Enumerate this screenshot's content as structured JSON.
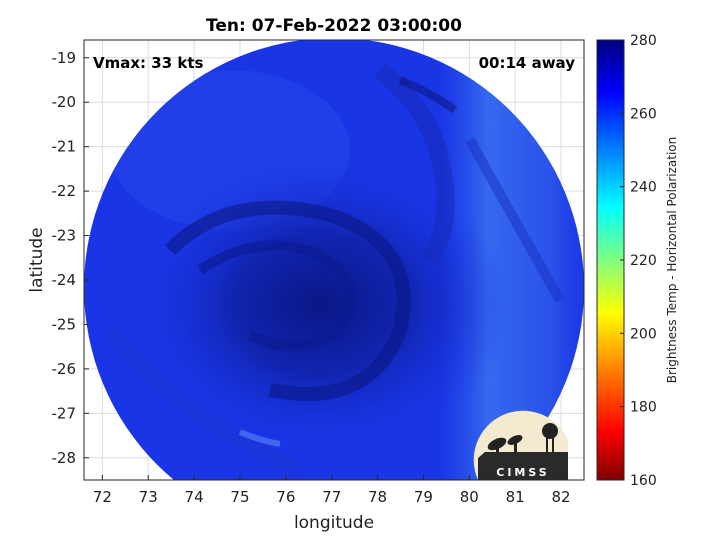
{
  "map": {
    "title": "Ten: 07-Feb-2022 03:00:00",
    "vmax_label": "Vmax: 33 kts",
    "time_label": "00:14 away",
    "xlabel": "longitude",
    "ylabel": "latitude",
    "x_ticks": [
      "72",
      "73",
      "74",
      "75",
      "76",
      "77",
      "78",
      "79",
      "80",
      "81",
      "82"
    ],
    "y_ticks": [
      "-19",
      "-20",
      "-21",
      "-22",
      "-23",
      "-24",
      "-25",
      "-26",
      "-27",
      "-28"
    ],
    "xlim": [
      71.6,
      82.5
    ],
    "ylim": [
      -28.5,
      -18.6
    ],
    "grid": true,
    "colors": {
      "disc_base": "#1a35e6",
      "core_dark": "#0c1b96",
      "warm_band": "#2f63ee",
      "grid": "#dddddd"
    }
  },
  "colorbar": {
    "label": "Brightness Temp - Horizontal Polarization",
    "ticks": [
      "280",
      "260",
      "240",
      "220",
      "200",
      "180",
      "160"
    ],
    "range": [
      160,
      280
    ],
    "colors": [
      "#800000",
      "#ff0000",
      "#ff8000",
      "#ffff00",
      "#80ff80",
      "#00ffff",
      "#0080ff",
      "#0000ff",
      "#000080"
    ]
  },
  "logo": {
    "text": "CIMSS",
    "icon": "cimss-logo"
  }
}
